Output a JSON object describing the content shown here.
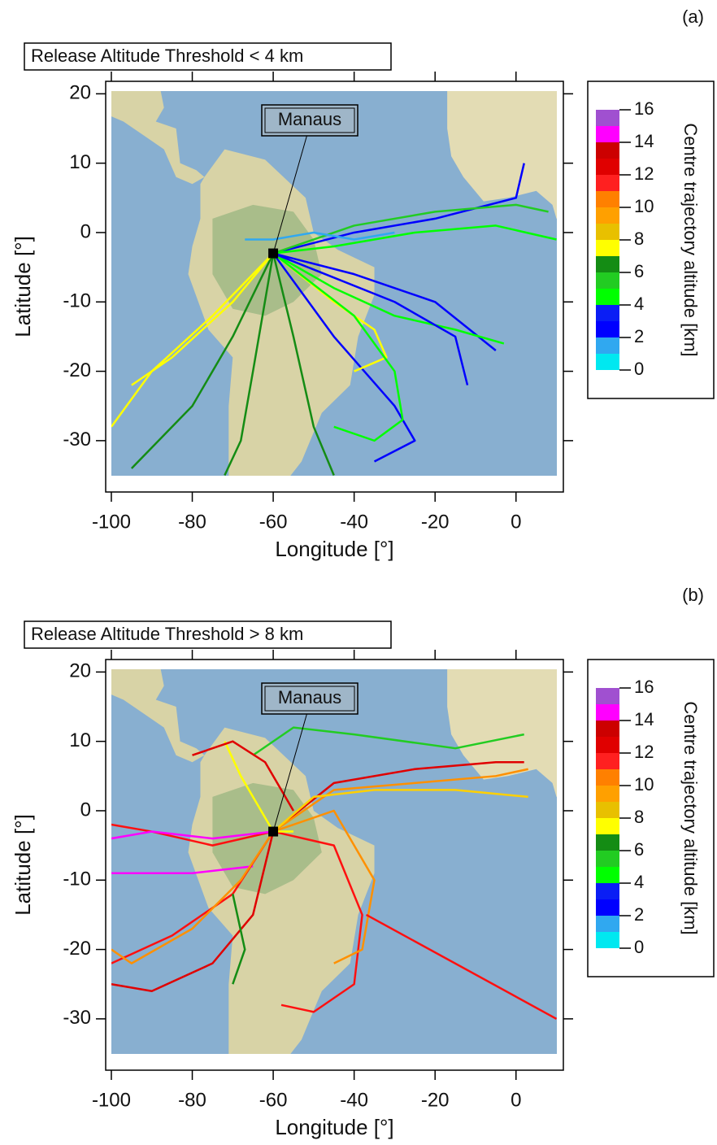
{
  "panels": [
    {
      "label": "(a)",
      "title": "Release Altitude Threshold < 4 km",
      "xlabel": "Longitude [°]",
      "ylabel": "Latitude [°]",
      "xlim": [
        -101.4,
        11.7
      ],
      "ylim": [
        -37.4,
        21.8
      ],
      "xticks": [
        -100,
        -80,
        -60,
        -40,
        -20,
        0
      ],
      "yticks": [
        -30,
        -20,
        -10,
        0,
        10,
        20
      ],
      "site": {
        "name": "Manaus",
        "lon": -60,
        "lat": -3
      },
      "colorbar": {
        "title": "Centre trajectory altitude [km]",
        "lim": [
          0,
          16
        ],
        "ticks": [
          0,
          2,
          4,
          6,
          8,
          10,
          12,
          14,
          16
        ]
      },
      "trajectories": [
        {
          "color": "#0000ff",
          "lon": [
            -60,
            -40,
            -20,
            0,
            2
          ],
          "lat": [
            -3,
            0,
            2,
            5,
            10
          ]
        },
        {
          "color": "#22cc22",
          "lon": [
            -60,
            -40,
            -20,
            0,
            8
          ],
          "lat": [
            -3,
            1,
            3,
            4,
            3
          ]
        },
        {
          "color": "#00ff00",
          "lon": [
            -60,
            -45,
            -25,
            -5,
            10
          ],
          "lat": [
            -3,
            -2,
            0,
            1,
            -1
          ]
        },
        {
          "color": "#0000ff",
          "lon": [
            -60,
            -40,
            -20,
            -5
          ],
          "lat": [
            -3,
            -6,
            -10,
            -17
          ]
        },
        {
          "color": "#00ff00",
          "lon": [
            -60,
            -45,
            -30,
            -15,
            -3
          ],
          "lat": [
            -3,
            -8,
            -12,
            -14,
            -16
          ]
        },
        {
          "color": "#0000ff",
          "lon": [
            -60,
            -45,
            -30,
            -25,
            -35
          ],
          "lat": [
            -3,
            -15,
            -25,
            -30,
            -33
          ]
        },
        {
          "color": "#148c14",
          "lon": [
            -60,
            -70,
            -80,
            -95
          ],
          "lat": [
            -3,
            -15,
            -25,
            -34
          ]
        },
        {
          "color": "#148c14",
          "lon": [
            -60,
            -55,
            -50,
            -45
          ],
          "lat": [
            -3,
            -15,
            -28,
            -35
          ]
        },
        {
          "color": "#148c14",
          "lon": [
            -60,
            -65,
            -68,
            -72
          ],
          "lat": [
            -3,
            -20,
            -30,
            -35
          ]
        },
        {
          "color": "#ffff00",
          "lon": [
            -60,
            -75,
            -90,
            -100
          ],
          "lat": [
            -3,
            -12,
            -20,
            -28
          ]
        },
        {
          "color": "#ffff00",
          "lon": [
            -60,
            -70,
            -85,
            -95
          ],
          "lat": [
            -3,
            -10,
            -18,
            -22
          ]
        },
        {
          "color": "#ffff00",
          "lon": [
            -60,
            -45,
            -35,
            -32,
            -40
          ],
          "lat": [
            -3,
            -10,
            -14,
            -18,
            -20
          ]
        },
        {
          "color": "#30a8f0",
          "lon": [
            -67,
            -60,
            -50,
            -40,
            -30
          ],
          "lat": [
            -1,
            -1,
            0,
            -1,
            0
          ]
        },
        {
          "color": "#00ff00",
          "lon": [
            -60,
            -40,
            -30,
            -28,
            -35,
            -45
          ],
          "lat": [
            -3,
            -12,
            -20,
            -27,
            -30,
            -28
          ]
        },
        {
          "color": "#0000ff",
          "lon": [
            -60,
            -30,
            -15,
            -12
          ],
          "lat": [
            -3,
            -10,
            -15,
            -22
          ]
        }
      ]
    },
    {
      "label": "(b)",
      "title": "Release Altitude Threshold > 8 km",
      "xlabel": "Longitude [°]",
      "ylabel": "Latitude [°]",
      "xlim": [
        -101.4,
        11.7
      ],
      "ylim": [
        -37.4,
        21.8
      ],
      "xticks": [
        -100,
        -80,
        -60,
        -40,
        -20,
        0
      ],
      "yticks": [
        -30,
        -20,
        -10,
        0,
        10,
        20
      ],
      "site": {
        "name": "Manaus",
        "lon": -60,
        "lat": -3
      },
      "colorbar": {
        "title": "Centre trajectory altitude [km]",
        "lim": [
          0,
          16
        ],
        "ticks": [
          0,
          2,
          4,
          6,
          8,
          10,
          12,
          14,
          16
        ]
      },
      "trajectories": [
        {
          "color": "#ff1010",
          "lon": [
            -60,
            -75,
            -90,
            -100
          ],
          "lat": [
            -3,
            -5,
            -3,
            -2
          ]
        },
        {
          "color": "#ff00ff",
          "lon": [
            -60,
            -75,
            -90,
            -100
          ],
          "lat": [
            -3,
            -4,
            -3,
            -4
          ]
        },
        {
          "color": "#ff00ff",
          "lon": [
            -65,
            -80,
            -100
          ],
          "lat": [
            -8,
            -9,
            -9
          ]
        },
        {
          "color": "#ff1010",
          "lon": [
            -60,
            -70,
            -85,
            -100
          ],
          "lat": [
            -3,
            -12,
            -18,
            -22
          ]
        },
        {
          "color": "#e00000",
          "lon": [
            -60,
            -65,
            -75,
            -90,
            -100
          ],
          "lat": [
            -3,
            -15,
            -22,
            -26,
            -25
          ]
        },
        {
          "color": "#ff9000",
          "lon": [
            -60,
            -68,
            -80,
            -95,
            -100
          ],
          "lat": [
            -3,
            -10,
            -17,
            -22,
            -20
          ]
        },
        {
          "color": "#ff1010",
          "lon": [
            -60,
            -45,
            -38,
            -40,
            -50,
            -58
          ],
          "lat": [
            -3,
            -5,
            -15,
            -25,
            -29,
            -28
          ]
        },
        {
          "color": "#ff9000",
          "lon": [
            -60,
            -45,
            -35,
            -38,
            -45
          ],
          "lat": [
            -3,
            0,
            -10,
            -20,
            -22
          ]
        },
        {
          "color": "#e00000",
          "lon": [
            -60,
            -45,
            -25,
            -5,
            2
          ],
          "lat": [
            -3,
            4,
            6,
            7,
            7
          ]
        },
        {
          "color": "#ff9000",
          "lon": [
            -60,
            -45,
            -25,
            -5,
            3
          ],
          "lat": [
            -3,
            3,
            4,
            5,
            6
          ]
        },
        {
          "color": "#ffd000",
          "lon": [
            -60,
            -50,
            -35,
            -15,
            3
          ],
          "lat": [
            -3,
            2,
            3,
            3,
            2
          ]
        },
        {
          "color": "#22cc22",
          "lon": [
            -65,
            -55,
            -40,
            -15,
            2
          ],
          "lat": [
            8,
            12,
            11,
            9,
            11
          ]
        },
        {
          "color": "#ff1010",
          "lon": [
            -37,
            10
          ],
          "lat": [
            -15,
            -30
          ]
        },
        {
          "color": "#ffff00",
          "lon": [
            -72,
            -68,
            -60,
            -55
          ],
          "lat": [
            10,
            5,
            -3,
            -3
          ]
        },
        {
          "color": "#e00000",
          "lon": [
            -80,
            -70,
            -62,
            -55
          ],
          "lat": [
            8,
            10,
            7,
            0
          ]
        },
        {
          "color": "#148c14",
          "lon": [
            -70,
            -67,
            -70
          ],
          "lat": [
            -12,
            -20,
            -25
          ]
        }
      ]
    }
  ]
}
